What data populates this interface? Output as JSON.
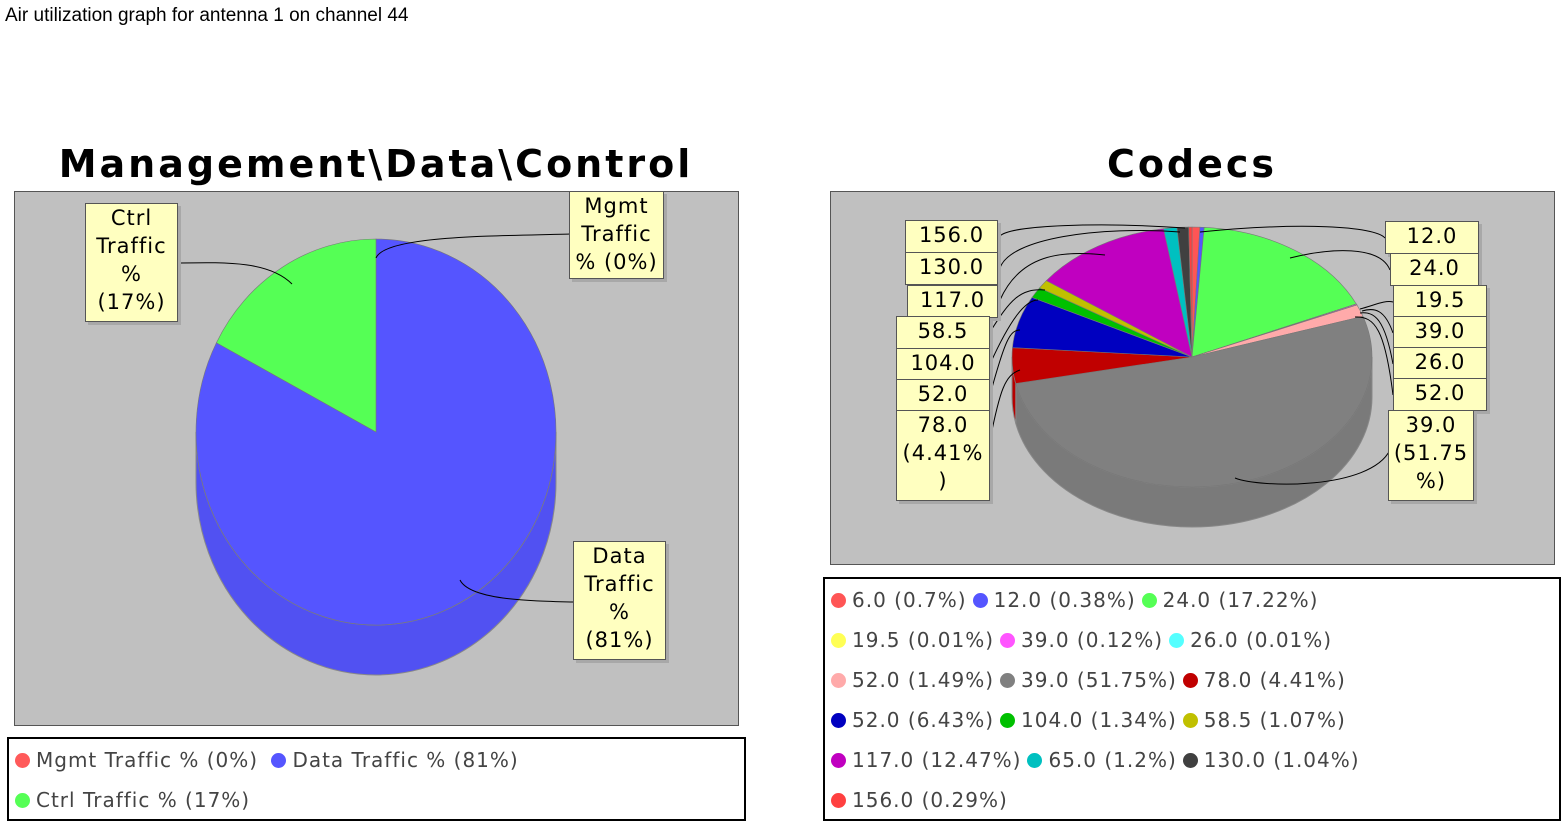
{
  "page_title": "Air utilization graph for antenna 1 on channel 44",
  "chart_data": [
    {
      "type": "pie",
      "title": "Management\\Data\\Control",
      "slices": [
        {
          "label": "Mgmt Traffic %",
          "value": 0,
          "legend": "Mgmt Traffic % (0%)",
          "color": "#ff5a5a"
        },
        {
          "label": "Data Traffic %",
          "value": 81,
          "legend": "Data Traffic % (81%)",
          "color": "#5555ff"
        },
        {
          "label": "Ctrl Traffic %",
          "value": 17,
          "legend": "Ctrl Traffic % (17%)",
          "color": "#55ff55"
        }
      ],
      "callouts": {
        "ctrl": [
          "Ctrl",
          "Traffic",
          "%",
          "(17%)"
        ],
        "mgmt": [
          "Mgmt",
          "Traffic",
          "% (0%)"
        ],
        "data": [
          "Data",
          "Traffic",
          "%",
          "(81%)"
        ]
      }
    },
    {
      "type": "pie",
      "title": "Codecs",
      "slices": [
        {
          "label": "6.0",
          "value": 0.7,
          "legend": "6.0 (0.7%)",
          "color": "#ff5555"
        },
        {
          "label": "12.0",
          "value": 0.38,
          "legend": "12.0 (0.38%)",
          "color": "#5555ff"
        },
        {
          "label": "24.0",
          "value": 17.22,
          "legend": "24.0 (17.22%)",
          "color": "#55ff55"
        },
        {
          "label": "19.5",
          "value": 0.01,
          "legend": "19.5 (0.01%)",
          "color": "#ffff55"
        },
        {
          "label": "39.0",
          "value": 0.12,
          "legend": "39.0 (0.12%)",
          "color": "#ff55ff"
        },
        {
          "label": "26.0",
          "value": 0.01,
          "legend": "26.0 (0.01%)",
          "color": "#55ffff"
        },
        {
          "label": "52.0",
          "value": 1.49,
          "legend": "52.0 (1.49%)",
          "color": "#ffaaaa"
        },
        {
          "label": "39.0",
          "value": 51.75,
          "legend": "39.0 (51.75%)",
          "color": "#808080"
        },
        {
          "label": "78.0",
          "value": 4.41,
          "legend": "78.0 (4.41%)",
          "color": "#c00000"
        },
        {
          "label": "52.0",
          "value": 6.43,
          "legend": "52.0 (6.43%)",
          "color": "#0000c0"
        },
        {
          "label": "104.0",
          "value": 1.34,
          "legend": "104.0 (1.34%)",
          "color": "#00c000"
        },
        {
          "label": "58.5",
          "value": 1.07,
          "legend": "58.5 (1.07%)",
          "color": "#c0c000"
        },
        {
          "label": "117.0",
          "value": 12.47,
          "legend": "117.0 (12.47%)",
          "color": "#c000c0"
        },
        {
          "label": "65.0",
          "value": 1.2,
          "legend": "65.0 (1.2%)",
          "color": "#00c0c0"
        },
        {
          "label": "130.0",
          "value": 1.04,
          "legend": "130.0 (1.04%)",
          "color": "#404040"
        },
        {
          "label": "156.0",
          "value": 0.29,
          "legend": "156.0 (0.29%)",
          "color": "#ff4040"
        }
      ],
      "left_labels": [
        "156.0",
        "130.0",
        "117.0",
        "58.5",
        "104.0",
        "52.0",
        "78.0",
        "(4.41%",
        ")"
      ],
      "right_labels": [
        "12.0",
        "24.0",
        "19.5",
        "39.0",
        "26.0",
        "52.0",
        "39.0",
        "(51.75",
        "%)"
      ]
    }
  ]
}
